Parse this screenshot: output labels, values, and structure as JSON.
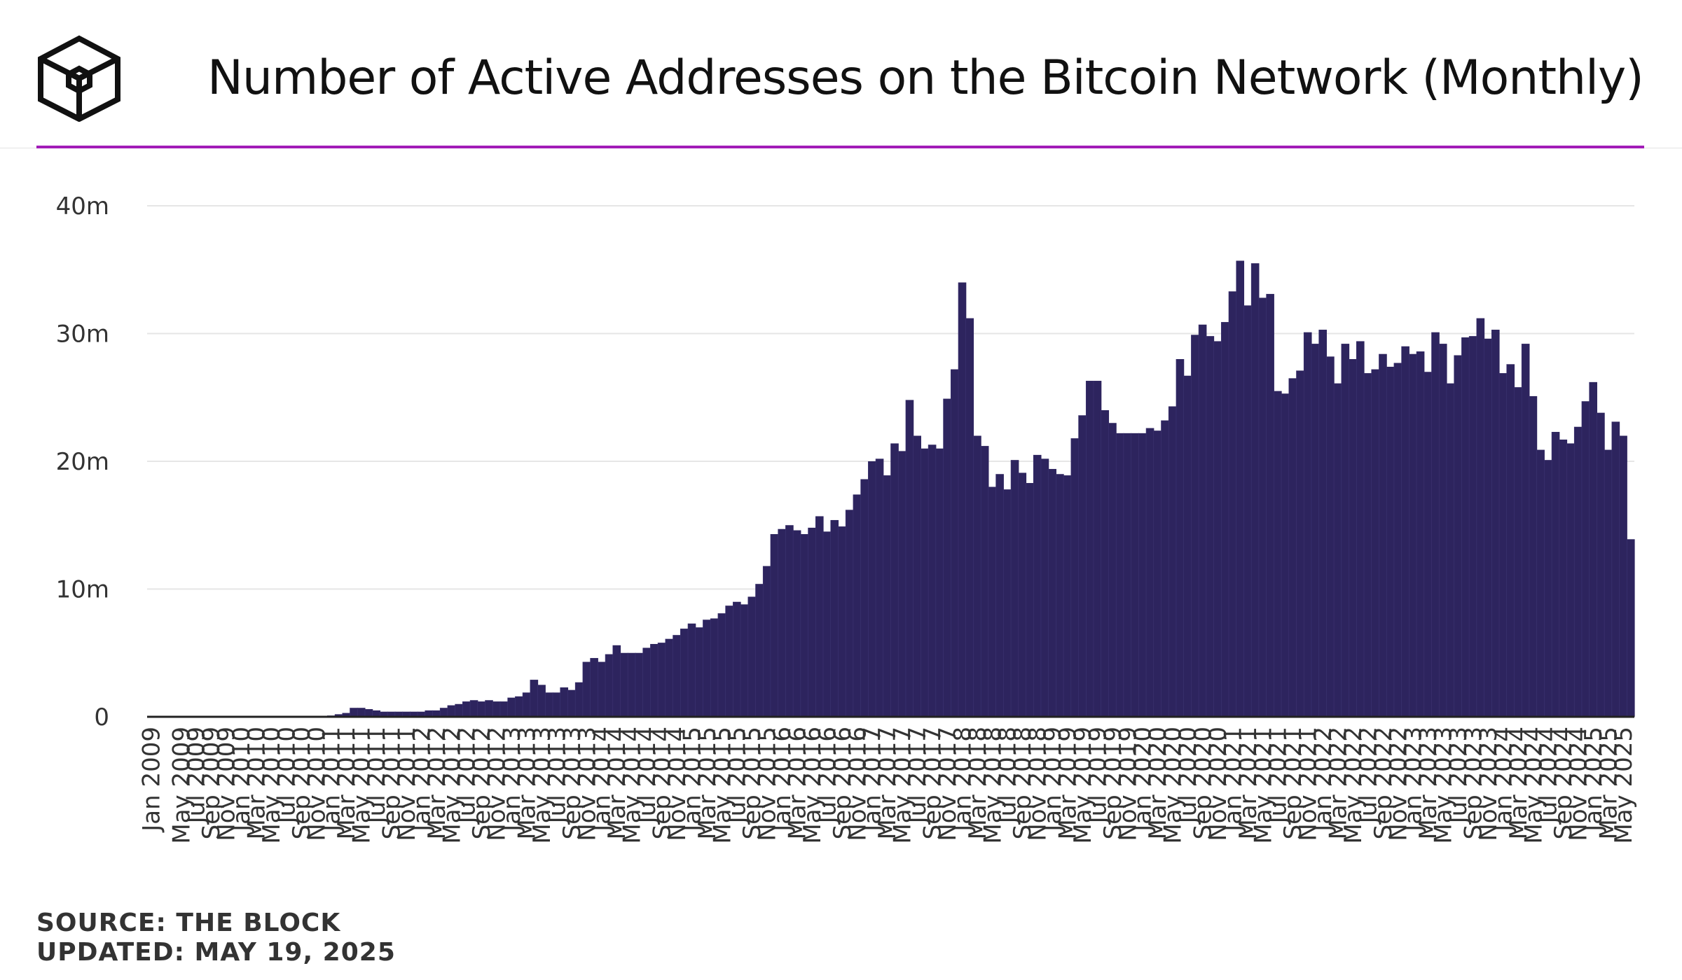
{
  "header": {
    "logo_icon": "the-block-cube-icon",
    "title": "Number of Active Addresses on the Bitcoin Network (Monthly)"
  },
  "colors": {
    "bar": "#2d245e",
    "accent": "#a21cb8",
    "grid": "#e6e6e6"
  },
  "chart_data": {
    "type": "bar",
    "title": "Number of Active Addresses on the Bitcoin Network (Monthly)",
    "xlabel": "",
    "ylabel": "",
    "ylim": [
      0,
      40
    ],
    "y_unit": "m",
    "y_ticks": [
      "0",
      "10m",
      "20m",
      "30m",
      "40m"
    ],
    "grid": true,
    "legend": "none",
    "x_start": "Jan 2009",
    "x_tick_labels": [
      "Jan 2009",
      "May 2009",
      "Jul 2009",
      "Sep 2009",
      "Nov 2009",
      "Jan 2010",
      "Mar 2010",
      "May 2010",
      "Jul 2010",
      "Sep 2010",
      "Nov 2010",
      "Jan 2011",
      "Mar 2011",
      "May 2011",
      "Jul 2011",
      "Sep 2011",
      "Nov 2011",
      "Jan 2012",
      "Mar 2012",
      "May 2012",
      "Jul 2012",
      "Sep 2012",
      "Nov 2012",
      "Jan 2013",
      "Mar 2013",
      "May 2013",
      "Jul 2013",
      "Sep 2013",
      "Nov 2013",
      "Jan 2014",
      "Mar 2014",
      "May 2014",
      "Jul 2014",
      "Sep 2014",
      "Nov 2014",
      "Jan 2015",
      "Mar 2015",
      "May 2015",
      "Jul 2015",
      "Sep 2015",
      "Nov 2015",
      "Jan 2016",
      "Mar 2016",
      "May 2016",
      "Jul 2016",
      "Sep 2016",
      "Nov 2016",
      "Jan 2017",
      "Mar 2017",
      "May 2017",
      "Jul 2017",
      "Sep 2017",
      "Nov 2017",
      "Jan 2018",
      "Mar 2018",
      "May 2018",
      "Jul 2018",
      "Sep 2018",
      "Nov 2018",
      "Jan 2019",
      "Mar 2019",
      "May 2019",
      "Jul 2019",
      "Sep 2019",
      "Nov 2019",
      "Jan 2020",
      "Mar 2020",
      "May 2020",
      "Jul 2020",
      "Sep 2020",
      "Nov 2020",
      "Jan 2021",
      "Mar 2021",
      "May 2021",
      "Jul 2021",
      "Sep 2021",
      "Nov 2021",
      "Jan 2022",
      "Mar 2022",
      "May 2022",
      "Jul 2022",
      "Sep 2022",
      "Nov 2022",
      "Jan 2023",
      "Mar 2023",
      "May 2023",
      "Jul 2023",
      "Sep 2023",
      "Nov 2023",
      "Jan 2024",
      "Mar 2024",
      "May 2024",
      "Jul 2024",
      "Sep 2024",
      "Nov 2024",
      "Jan 2025",
      "Mar 2025",
      "May 2025"
    ],
    "values": [
      0,
      0,
      0,
      0,
      0,
      0,
      0,
      0,
      0,
      0,
      0,
      0,
      0,
      0,
      0,
      0,
      0,
      0,
      0,
      0,
      0,
      0,
      0,
      0,
      0.1,
      0.2,
      0.3,
      0.7,
      0.7,
      0.6,
      0.5,
      0.4,
      0.4,
      0.4,
      0.4,
      0.4,
      0.4,
      0.5,
      0.5,
      0.7,
      0.9,
      1.0,
      1.2,
      1.3,
      1.2,
      1.3,
      1.2,
      1.2,
      1.5,
      1.6,
      1.9,
      2.9,
      2.5,
      1.9,
      1.9,
      2.3,
      2.1,
      2.7,
      4.3,
      4.6,
      4.3,
      4.9,
      5.6,
      5.0,
      5.0,
      5.0,
      5.4,
      5.7,
      5.8,
      6.1,
      6.4,
      6.9,
      7.3,
      7.0,
      7.6,
      7.7,
      8.1,
      8.7,
      9.0,
      8.8,
      9.4,
      10.4,
      11.8,
      14.3,
      14.7,
      15.0,
      14.6,
      14.3,
      14.8,
      15.7,
      14.5,
      15.4,
      14.9,
      16.2,
      17.4,
      18.6,
      20.0,
      20.2,
      18.9,
      21.4,
      20.8,
      24.8,
      22.0,
      21.0,
      21.3,
      21.0,
      24.9,
      27.2,
      34.0,
      31.2,
      22.0,
      21.2,
      18.0,
      19.0,
      17.8,
      20.1,
      19.1,
      18.3,
      20.5,
      20.2,
      19.4,
      19.0,
      18.9,
      21.8,
      23.6,
      26.3,
      26.3,
      24.0,
      23.0,
      22.2,
      22.2,
      22.2,
      22.2,
      22.6,
      22.4,
      23.2,
      24.3,
      28.0,
      26.7,
      29.9,
      30.7,
      29.8,
      29.4,
      30.9,
      33.3,
      35.7,
      32.2,
      35.5,
      32.8,
      33.1,
      25.5,
      25.3,
      26.5,
      27.1,
      30.1,
      29.2,
      30.3,
      28.2,
      26.1,
      29.2,
      28.0,
      29.4,
      26.9,
      27.2,
      28.4,
      27.4,
      27.7,
      29.0,
      28.4,
      28.6,
      27.0,
      30.1,
      29.2,
      26.1,
      28.3,
      29.7,
      29.8,
      31.2,
      29.6,
      30.3,
      26.9,
      27.6,
      25.8,
      29.2,
      25.1,
      20.9,
      20.1,
      22.3,
      21.7,
      21.4,
      22.7,
      24.7,
      26.2,
      23.8,
      20.9,
      23.1,
      22.0,
      13.9
    ]
  },
  "footer": {
    "source": "SOURCE: THE BLOCK",
    "updated": "UPDATED: MAY 19, 2025"
  }
}
